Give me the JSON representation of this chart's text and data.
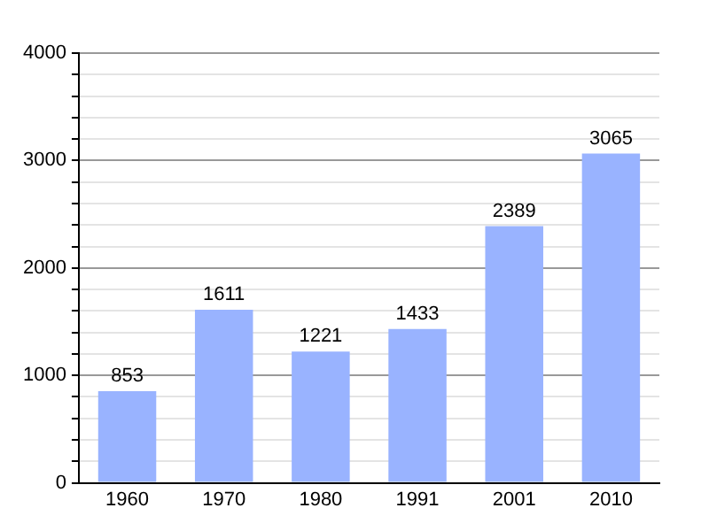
{
  "chart_data": {
    "type": "bar",
    "categories": [
      "1960",
      "1970",
      "1980",
      "1991",
      "2001",
      "2010"
    ],
    "values": [
      853,
      1611,
      1221,
      1433,
      2389,
      3065
    ],
    "color": "#99b3ff",
    "data_labels": true,
    "grid": "y",
    "ylim": [
      0,
      4000
    ],
    "yticks": [
      0,
      {
        "value": 200,
        "label": null
      },
      {
        "value": 400,
        "label": null
      },
      {
        "value": 600,
        "label": null
      },
      {
        "value": 800,
        "label": null
      },
      1000,
      {
        "value": 1200,
        "label": null
      },
      {
        "value": 1400,
        "label": null
      },
      {
        "value": 1600,
        "label": null
      },
      {
        "value": 1800,
        "label": null
      },
      2000,
      {
        "value": 2200,
        "label": null
      },
      {
        "value": 2400,
        "label": null
      },
      {
        "value": 2600,
        "label": null
      },
      {
        "value": 2800,
        "label": null
      },
      3000,
      {
        "value": 3200,
        "label": null
      },
      {
        "value": 3400,
        "label": null
      },
      {
        "value": 3600,
        "label": null
      },
      {
        "value": 3800,
        "label": null
      },
      4000
    ]
  }
}
